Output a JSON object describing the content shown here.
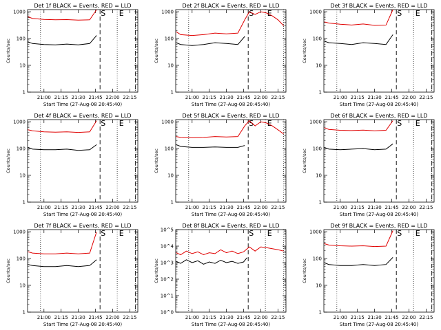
{
  "window": {
    "title": ""
  },
  "colors": {
    "events": "#000000",
    "lld": "#e00000",
    "frame": "#000000",
    "background": "#ffffff"
  },
  "chart_data": [
    {
      "type": "line",
      "title": "Det 1f BLACK = Events, RED = LLD",
      "xlabel": "Start Time (27-Aug-08 20:45:40)",
      "ylabel": "Counts/sec",
      "x_ticks": [
        "21:00",
        "21:15",
        "21:30",
        "21:45",
        "22:00",
        "22:15"
      ],
      "y_ticks": [
        "1",
        "10",
        "100",
        "1000"
      ],
      "yscale": "log",
      "ylim": [
        1,
        1200
      ],
      "xlim": [
        "20:45:40",
        "22:22"
      ],
      "markers": [
        {
          "label": "S",
          "time": "21:49"
        },
        {
          "label": "E",
          "time": "22:05"
        }
      ],
      "dotted_lines": [
        "20:57",
        "22:04",
        "22:20"
      ],
      "dashed_lines": [
        "21:49",
        "22:20"
      ],
      "series": [
        {
          "name": "Events",
          "x": [
            "20:46",
            "20:50",
            "21:00",
            "21:10",
            "21:20",
            "21:30",
            "21:40",
            "21:46"
          ],
          "values": [
            75,
            65,
            60,
            58,
            62,
            58,
            65,
            130
          ]
        },
        {
          "name": "LLD",
          "x": [
            "20:46",
            "20:50",
            "21:00",
            "21:10",
            "21:20",
            "21:30",
            "21:40",
            "21:46"
          ],
          "values": [
            650,
            560,
            520,
            500,
            510,
            490,
            500,
            1200
          ]
        }
      ]
    },
    {
      "type": "line",
      "title": "Det 2f BLACK = Events, RED = LLD",
      "xlabel": "Start Time (27-Aug-08 20:45:40)",
      "ylabel": "Counts/sec",
      "x_ticks": [
        "21:00",
        "21:15",
        "21:30",
        "21:45",
        "22:00",
        "22:15"
      ],
      "y_ticks": [
        "1",
        "10",
        "100",
        "1000"
      ],
      "yscale": "log",
      "ylim": [
        1,
        1200
      ],
      "xlim": [
        "20:45:40",
        "22:22"
      ],
      "markers": [
        {
          "label": "S",
          "time": "21:49"
        },
        {
          "label": "E",
          "time": "22:05"
        }
      ],
      "dotted_lines": [
        "20:57",
        "22:04",
        "22:20"
      ],
      "dashed_lines": [
        "21:49"
      ],
      "series": [
        {
          "name": "Events",
          "x": [
            "20:46",
            "20:50",
            "21:00",
            "21:10",
            "21:20",
            "21:30",
            "21:40",
            "21:46"
          ],
          "values": [
            70,
            60,
            55,
            60,
            70,
            65,
            60,
            120
          ]
        },
        {
          "name": "LLD",
          "x": [
            "20:46",
            "20:50",
            "21:00",
            "21:10",
            "21:20",
            "21:30",
            "21:40",
            "21:46",
            "21:50",
            "21:55",
            "22:00",
            "22:05",
            "22:10",
            "22:15",
            "22:20"
          ],
          "values": [
            180,
            140,
            130,
            140,
            160,
            150,
            160,
            500,
            1000,
            800,
            1000,
            900,
            700,
            500,
            300
          ]
        }
      ]
    },
    {
      "type": "line",
      "title": "Det 3f BLACK = Events, RED = LLD",
      "xlabel": "Start Time (27-Aug-08 20:45:40)",
      "ylabel": "Counts/sec",
      "x_ticks": [
        "21:00",
        "21:15",
        "21:30",
        "21:45",
        "22:00",
        "22:15"
      ],
      "y_ticks": [
        "1",
        "10",
        "100",
        "1000"
      ],
      "yscale": "log",
      "ylim": [
        1,
        1200
      ],
      "xlim": [
        "20:45:40",
        "22:22"
      ],
      "markers": [
        {
          "label": "S",
          "time": "21:49"
        },
        {
          "label": "E",
          "time": "22:05"
        }
      ],
      "dotted_lines": [
        "20:57",
        "22:04",
        "22:20"
      ],
      "dashed_lines": [
        "21:49",
        "22:20"
      ],
      "series": [
        {
          "name": "Events",
          "x": [
            "20:46",
            "20:50",
            "21:00",
            "21:10",
            "21:20",
            "21:30",
            "21:40",
            "21:46"
          ],
          "values": [
            80,
            70,
            65,
            60,
            70,
            65,
            60,
            140
          ]
        },
        {
          "name": "LLD",
          "x": [
            "20:46",
            "20:50",
            "21:00",
            "21:10",
            "21:20",
            "21:30",
            "21:40",
            "21:46"
          ],
          "values": [
            420,
            380,
            340,
            320,
            350,
            310,
            320,
            1200
          ]
        }
      ]
    },
    {
      "type": "line",
      "title": "Det 4f BLACK = Events, RED = LLD",
      "xlabel": "Start Time (27-Aug-08 20:45:40)",
      "ylabel": "Counts/sec",
      "x_ticks": [
        "21:00",
        "21:15",
        "21:30",
        "21:45",
        "22:00",
        "22:15"
      ],
      "y_ticks": [
        "1",
        "10",
        "100",
        "1000"
      ],
      "yscale": "log",
      "ylim": [
        1,
        1200
      ],
      "xlim": [
        "20:45:40",
        "22:22"
      ],
      "markers": [
        {
          "label": "S",
          "time": "21:49"
        },
        {
          "label": "E",
          "time": "22:05"
        }
      ],
      "dotted_lines": [
        "20:57",
        "22:04",
        "22:20"
      ],
      "dashed_lines": [
        "21:49",
        "22:20"
      ],
      "series": [
        {
          "name": "Events",
          "x": [
            "20:46",
            "20:50",
            "21:00",
            "21:10",
            "21:20",
            "21:30",
            "21:40",
            "21:46"
          ],
          "values": [
            110,
            95,
            90,
            90,
            95,
            85,
            90,
            140
          ]
        },
        {
          "name": "LLD",
          "x": [
            "20:46",
            "20:50",
            "21:00",
            "21:10",
            "21:20",
            "21:30",
            "21:40",
            "21:46"
          ],
          "values": [
            500,
            460,
            420,
            410,
            420,
            400,
            420,
            1100
          ]
        }
      ]
    },
    {
      "type": "line",
      "title": "Det 5f BLACK = Events, RED = LLD",
      "xlabel": "Start Time (27-Aug-08 20:45:40)",
      "ylabel": "Counts/sec",
      "x_ticks": [
        "21:00",
        "21:15",
        "21:30",
        "21:45",
        "22:00",
        "22:15"
      ],
      "y_ticks": [
        "1",
        "10",
        "100",
        "1000"
      ],
      "yscale": "log",
      "ylim": [
        1,
        1200
      ],
      "xlim": [
        "20:45:40",
        "22:22"
      ],
      "markers": [
        {
          "label": "S",
          "time": "21:49"
        },
        {
          "label": "E",
          "time": "22:05"
        }
      ],
      "dotted_lines": [
        "20:57",
        "22:04",
        "22:20"
      ],
      "dashed_lines": [
        "21:49"
      ],
      "series": [
        {
          "name": "Events",
          "x": [
            "20:46",
            "20:50",
            "21:00",
            "21:10",
            "21:20",
            "21:30",
            "21:40",
            "21:46"
          ],
          "values": [
            140,
            120,
            110,
            110,
            115,
            110,
            110,
            130
          ]
        },
        {
          "name": "LLD",
          "x": [
            "20:46",
            "20:50",
            "21:00",
            "21:10",
            "21:20",
            "21:30",
            "21:40",
            "21:46",
            "21:50",
            "21:55",
            "22:00",
            "22:05",
            "22:10",
            "22:15",
            "22:20"
          ],
          "values": [
            280,
            260,
            250,
            260,
            280,
            270,
            280,
            700,
            1100,
            700,
            1000,
            900,
            700,
            500,
            350
          ]
        }
      ]
    },
    {
      "type": "line",
      "title": "Det 6f BLACK = Events, RED = LLD",
      "xlabel": "Start Time (27-Aug-08 20:45:40)",
      "ylabel": "Counts/sec",
      "x_ticks": [
        "21:00",
        "21:15",
        "21:30",
        "21:45",
        "22:00",
        "22:15"
      ],
      "y_ticks": [
        "1",
        "10",
        "100",
        "1000"
      ],
      "yscale": "log",
      "ylim": [
        1,
        1200
      ],
      "xlim": [
        "20:45:40",
        "22:22"
      ],
      "markers": [
        {
          "label": "S",
          "time": "21:49"
        },
        {
          "label": "E",
          "time": "22:05"
        }
      ],
      "dotted_lines": [
        "20:57",
        "22:04",
        "22:20"
      ],
      "dashed_lines": [
        "21:49",
        "22:20"
      ],
      "series": [
        {
          "name": "Events",
          "x": [
            "20:46",
            "20:50",
            "21:00",
            "21:10",
            "21:20",
            "21:30",
            "21:40",
            "21:46"
          ],
          "values": [
            110,
            95,
            90,
            95,
            100,
            90,
            95,
            150
          ]
        },
        {
          "name": "LLD",
          "x": [
            "20:46",
            "20:50",
            "21:00",
            "21:10",
            "21:20",
            "21:30",
            "21:40",
            "21:46"
          ],
          "values": [
            600,
            520,
            480,
            470,
            490,
            460,
            480,
            1100
          ]
        }
      ]
    },
    {
      "type": "line",
      "title": "Det 7f BLACK = Events, RED = LLD",
      "xlabel": "Start Time (27-Aug-08 20:45:40)",
      "ylabel": "Counts/sec",
      "x_ticks": [
        "21:00",
        "21:15",
        "21:30",
        "21:45",
        "22:00",
        "22:15"
      ],
      "y_ticks": [
        "1",
        "10",
        "100",
        "1000"
      ],
      "yscale": "log",
      "ylim": [
        1,
        1200
      ],
      "xlim": [
        "20:45:40",
        "22:22"
      ],
      "markers": [
        {
          "label": "S",
          "time": "21:49"
        },
        {
          "label": "E",
          "time": "22:05"
        }
      ],
      "dotted_lines": [
        "20:57",
        "22:04",
        "22:20"
      ],
      "dashed_lines": [
        "21:49",
        "22:20"
      ],
      "series": [
        {
          "name": "Events",
          "x": [
            "20:46",
            "20:50",
            "21:00",
            "21:10",
            "21:20",
            "21:30",
            "21:40",
            "21:46"
          ],
          "values": [
            60,
            55,
            50,
            50,
            55,
            50,
            55,
            90
          ]
        },
        {
          "name": "LLD",
          "x": [
            "20:46",
            "20:50",
            "21:00",
            "21:10",
            "21:20",
            "21:30",
            "21:40",
            "21:46"
          ],
          "values": [
            180,
            160,
            150,
            150,
            160,
            150,
            160,
            1000
          ]
        }
      ]
    },
    {
      "type": "line",
      "title": "Det 8f BLACK = Events, RED = LLD",
      "xlabel": "Start Time (27-Aug-08 20:45:40)",
      "ylabel": "Counts/sec",
      "x_ticks": [
        "21:00",
        "21:15",
        "21:30",
        "21:45",
        "22:00",
        "22:15"
      ],
      "y_ticks": [
        "10^0",
        "10^1",
        "10^2",
        "10^3",
        "10^4",
        "10^5"
      ],
      "yscale": "log",
      "ylim": [
        1,
        100000
      ],
      "xlim": [
        "20:45:40",
        "22:22"
      ],
      "markers": [
        {
          "label": "S",
          "time": "21:49"
        },
        {
          "label": "E",
          "time": "22:05"
        }
      ],
      "dotted_lines": [
        "20:57",
        "22:04",
        "22:20"
      ],
      "dashed_lines": [
        "21:49"
      ],
      "series": [
        {
          "name": "Events",
          "x": [
            "20:46",
            "20:50",
            "20:55",
            "21:00",
            "21:05",
            "21:10",
            "21:15",
            "21:20",
            "21:25",
            "21:30",
            "21:35",
            "21:40",
            "21:45",
            "21:48"
          ],
          "values": [
            1200,
            900,
            1500,
            1000,
            1300,
            800,
            1100,
            900,
            1400,
            1000,
            1200,
            900,
            1100,
            2000
          ]
        },
        {
          "name": "LLD",
          "x": [
            "20:46",
            "20:50",
            "20:55",
            "21:00",
            "21:05",
            "21:10",
            "21:15",
            "21:20",
            "21:25",
            "21:30",
            "21:35",
            "21:40",
            "21:45",
            "21:50",
            "21:55",
            "22:00",
            "22:05",
            "22:10",
            "22:15",
            "22:20"
          ],
          "values": [
            4000,
            3000,
            5000,
            3500,
            4500,
            3000,
            4000,
            3500,
            6000,
            4000,
            5000,
            3500,
            4500,
            9000,
            5000,
            9000,
            8000,
            7000,
            6000,
            5000
          ]
        }
      ]
    },
    {
      "type": "line",
      "title": "Det 9f BLACK = Events, RED = LLD",
      "xlabel": "Start Time (27-Aug-08 20:45:40)",
      "ylabel": "Counts/sec",
      "x_ticks": [
        "21:00",
        "21:15",
        "21:30",
        "21:45",
        "22:00",
        "22:15"
      ],
      "y_ticks": [
        "1",
        "10",
        "100",
        "1000"
      ],
      "yscale": "log",
      "ylim": [
        1,
        1200
      ],
      "xlim": [
        "20:45:40",
        "22:22"
      ],
      "markers": [
        {
          "label": "S",
          "time": "21:49"
        },
        {
          "label": "E",
          "time": "22:05"
        }
      ],
      "dotted_lines": [
        "20:57",
        "22:04",
        "22:20"
      ],
      "dashed_lines": [
        "21:49",
        "22:20"
      ],
      "series": [
        {
          "name": "Events",
          "x": [
            "20:46",
            "20:50",
            "21:00",
            "21:10",
            "21:20",
            "21:30",
            "21:40",
            "21:46"
          ],
          "values": [
            70,
            60,
            55,
            55,
            60,
            55,
            60,
            110
          ]
        },
        {
          "name": "LLD",
          "x": [
            "20:46",
            "20:50",
            "21:00",
            "21:10",
            "21:20",
            "21:30",
            "21:40",
            "21:46"
          ],
          "values": [
            360,
            320,
            300,
            290,
            300,
            280,
            290,
            1100
          ]
        }
      ]
    }
  ]
}
